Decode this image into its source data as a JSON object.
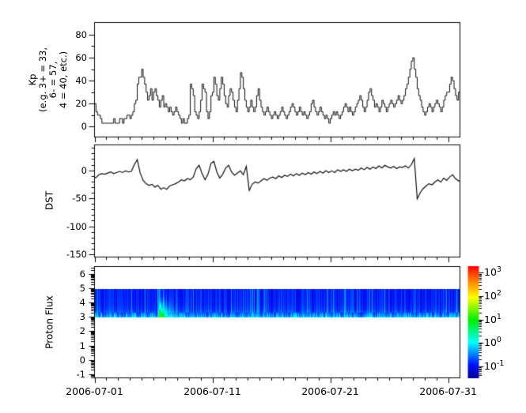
{
  "figure": {
    "background_color": "#ffffff",
    "line_color": "#000000",
    "x_axis": {
      "tick_labels": [
        "2006-07-01",
        "2006-07-11",
        "2006-07-21",
        "2006-07-31"
      ],
      "tick_days": [
        0,
        10,
        20,
        30
      ],
      "range_days": [
        0,
        31
      ],
      "minor_tick_every_days": 1
    }
  },
  "chart_data": [
    {
      "type": "line",
      "subtype": "step",
      "name": "Kp index",
      "ylabel_lines": [
        "Kp",
        "(e.g. 3+ = 33,",
        "6- = 57,",
        "4 = 40, etc.)"
      ],
      "ylim": [
        -9,
        90.6
      ],
      "ytick_values": [
        0,
        20,
        40,
        60,
        80
      ],
      "ytick_labels": [
        "0",
        "20",
        "40",
        "60",
        "80"
      ],
      "minor_ytick_values": [
        10,
        30,
        50,
        70
      ],
      "sample_hours": 3,
      "values": [
        20,
        13,
        10,
        10,
        7,
        3,
        3,
        3,
        3,
        3,
        3,
        3,
        3,
        7,
        3,
        3,
        3,
        7,
        7,
        3,
        7,
        7,
        10,
        10,
        7,
        10,
        13,
        20,
        23,
        37,
        43,
        43,
        50,
        43,
        37,
        30,
        23,
        27,
        33,
        23,
        30,
        33,
        27,
        23,
        17,
        23,
        27,
        17,
        20,
        17,
        13,
        17,
        13,
        10,
        13,
        17,
        13,
        10,
        7,
        3,
        7,
        3,
        3,
        7,
        10,
        37,
        33,
        27,
        13,
        10,
        7,
        13,
        23,
        37,
        33,
        30,
        13,
        7,
        13,
        27,
        30,
        43,
        37,
        27,
        23,
        33,
        43,
        37,
        27,
        20,
        17,
        27,
        33,
        30,
        23,
        17,
        13,
        23,
        33,
        47,
        43,
        33,
        23,
        17,
        13,
        17,
        23,
        17,
        13,
        17,
        27,
        33,
        23,
        17,
        13,
        10,
        13,
        17,
        13,
        10,
        7,
        10,
        13,
        10,
        7,
        10,
        13,
        17,
        13,
        10,
        7,
        10,
        13,
        17,
        20,
        17,
        13,
        10,
        13,
        17,
        13,
        10,
        13,
        10,
        7,
        10,
        13,
        20,
        23,
        17,
        13,
        10,
        13,
        17,
        13,
        10,
        7,
        10,
        7,
        3,
        7,
        10,
        13,
        10,
        13,
        10,
        7,
        10,
        13,
        17,
        20,
        17,
        13,
        17,
        13,
        10,
        13,
        17,
        20,
        23,
        27,
        23,
        17,
        13,
        17,
        23,
        30,
        33,
        27,
        23,
        17,
        20,
        17,
        13,
        17,
        23,
        20,
        17,
        13,
        17,
        20,
        23,
        20,
        17,
        20,
        23,
        27,
        23,
        20,
        23,
        27,
        33,
        37,
        43,
        50,
        57,
        60,
        50,
        43,
        33,
        27,
        23,
        17,
        13,
        10,
        13,
        17,
        20,
        17,
        13,
        17,
        20,
        23,
        20,
        17,
        13,
        17,
        23,
        27,
        30,
        30,
        37,
        43,
        40,
        33,
        27,
        23,
        30
      ]
    },
    {
      "type": "line",
      "name": "DST index",
      "ylabel": "DST",
      "ylim": [
        -155,
        45.3
      ],
      "ytick_values": [
        0,
        -50,
        -100,
        -150
      ],
      "ytick_labels": [
        "0",
        "-50",
        "-100",
        "-150"
      ],
      "minor_ytick_step": 10,
      "sample_hours": 6,
      "values": [
        -13,
        -8,
        -6,
        -7,
        -5,
        -3,
        -6,
        -4,
        -2,
        -4,
        -1,
        -3,
        -2,
        10,
        19,
        -5,
        -18,
        -24,
        -27,
        -25,
        -30,
        -27,
        -34,
        -31,
        -34,
        -28,
        -26,
        -24,
        -21,
        -17,
        -19,
        -15,
        -17,
        -12,
        3,
        9,
        -6,
        -17,
        -7,
        12,
        16,
        -3,
        -14,
        -7,
        4,
        9,
        -3,
        -9,
        -5,
        -1,
        -8,
        7,
        -36,
        -25,
        -21,
        -23,
        -19,
        -15,
        -18,
        -14,
        -12,
        -15,
        -10,
        -13,
        -9,
        -11,
        -7,
        -10,
        -6,
        -9,
        -5,
        -8,
        -4,
        -7,
        -3,
        -6,
        -2,
        -5,
        -1,
        -4,
        -1,
        -4,
        1,
        -2,
        1,
        -2,
        2,
        -1,
        2,
        0,
        4,
        1,
        5,
        2,
        6,
        3,
        8,
        4,
        9,
        6,
        4,
        7,
        3,
        6,
        5,
        8,
        4,
        10,
        21,
        -51,
        -40,
        -33,
        -28,
        -24,
        -26,
        -21,
        -17,
        -21,
        -14,
        -18,
        -12,
        -8,
        -15,
        -19
      ]
    },
    {
      "type": "heatmap",
      "name": "Proton Flux spectrogram",
      "ylabel": "Proton Flux",
      "yscale": "log10 exponent",
      "ylim": [
        -1.27,
        6.54
      ],
      "ytick_values": [
        -1,
        0,
        1,
        2,
        3,
        4,
        5,
        6
      ],
      "ytick_labels": [
        "-1",
        "0",
        "1",
        "2",
        "3",
        "4",
        "5",
        "6"
      ],
      "band_log_range": [
        3,
        5
      ],
      "background": {
        "logflux_bottom_edge": -0.16,
        "logflux_main": -0.85,
        "striation_noise": 0.5
      },
      "event": {
        "start_day": 5.33,
        "peak_day": 5.55,
        "end_day": 7.1,
        "peak_logflux": 1.2,
        "onset_column_boost": 0.7
      },
      "colorbar": {
        "scale": "log",
        "log_range": [
          -1.5,
          3.3
        ],
        "tick_exponents": [
          3,
          2,
          1,
          0,
          -1
        ],
        "tick_labels": [
          {
            "base": "10",
            "exp": "3"
          },
          {
            "base": "10",
            "exp": "2"
          },
          {
            "base": "10",
            "exp": "1"
          },
          {
            "base": "10",
            "exp": "0"
          },
          {
            "base": "10",
            "exp": "-1"
          }
        ],
        "gradient_stops": [
          {
            "t": 0.0,
            "color": "#000096"
          },
          {
            "t": 0.12,
            "color": "#0010ff"
          },
          {
            "t": 0.32,
            "color": "#00ffff"
          },
          {
            "t": 0.52,
            "color": "#00ee00"
          },
          {
            "t": 0.72,
            "color": "#ffff00"
          },
          {
            "t": 0.87,
            "color": "#ff7d00"
          },
          {
            "t": 1.0,
            "color": "#ff0000"
          }
        ]
      }
    }
  ]
}
